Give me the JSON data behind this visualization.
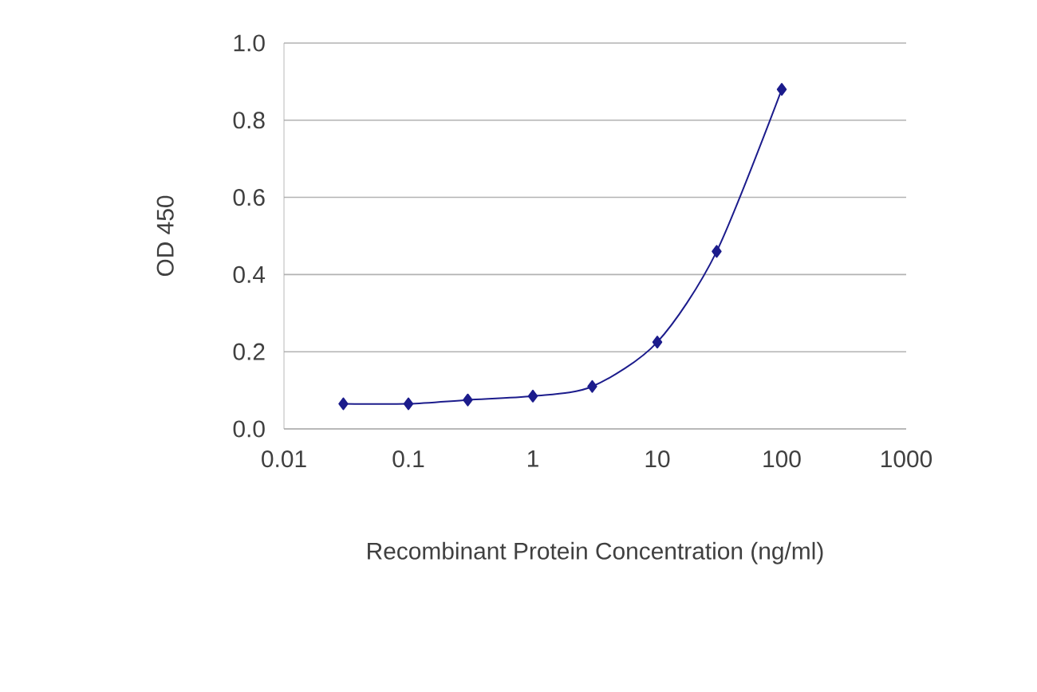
{
  "chart_data": {
    "type": "line",
    "xlabel": "Recombinant Protein Concentration (ng/ml)",
    "ylabel": "OD 450",
    "log": "x",
    "grid": "y",
    "marker": "diamond",
    "line_style": "solid",
    "x": [
      0.03,
      0.1,
      0.3,
      1,
      3,
      10,
      30,
      100
    ],
    "series": [
      {
        "color": "#1c1c8c",
        "values": [
          0.065,
          0.065,
          0.075,
          0.085,
          0.11,
          0.225,
          0.46,
          0.88
        ]
      }
    ],
    "xlim": [
      0.01,
      1000
    ],
    "xticks": [
      0.01,
      0.1,
      1,
      10,
      100,
      1000
    ],
    "ylim": [
      0,
      1
    ],
    "yticks": [
      {
        "value": 0,
        "label": "0.0"
      },
      {
        "value": 0.2,
        "label": "0.2"
      },
      {
        "value": 0.4,
        "label": "0.4"
      },
      {
        "value": 0.6,
        "label": "0.6"
      },
      {
        "value": 0.8,
        "label": "0.8"
      },
      {
        "value": 1,
        "label": "1.0"
      }
    ]
  }
}
